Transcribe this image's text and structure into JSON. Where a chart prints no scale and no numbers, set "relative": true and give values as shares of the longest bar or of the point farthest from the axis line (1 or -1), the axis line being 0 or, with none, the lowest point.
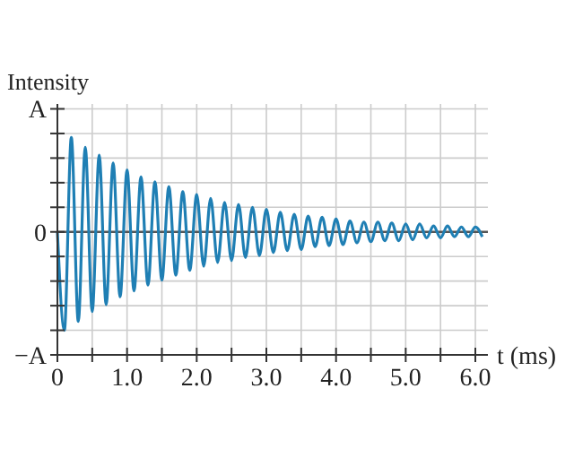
{
  "chart_data": {
    "type": "line",
    "ylabel": "Intensity",
    "xlabel": "t (ms)",
    "relative": true,
    "x": [
      0,
      0.1,
      0.2,
      0.3,
      0.4,
      0.5,
      0.6,
      0.7,
      0.8,
      0.9,
      1.0,
      1.1,
      1.2,
      1.3,
      1.4,
      1.5,
      1.6,
      1.7,
      1.8,
      1.9,
      2.0,
      2.1,
      2.2,
      2.3,
      2.4,
      2.5,
      2.6,
      2.7,
      2.8,
      2.9,
      3.0,
      3.1,
      3.2,
      3.3,
      3.4,
      3.5,
      3.6,
      3.7,
      3.8,
      3.9,
      4.0,
      4.1,
      4.2,
      4.3,
      4.4,
      4.5,
      4.6,
      4.7,
      4.8,
      4.9,
      5.0,
      5.1,
      5.2,
      5.3,
      5.4,
      5.5,
      5.6,
      5.7,
      5.8,
      5.9,
      6.0,
      6.1
    ],
    "series": [
      {
        "color": "#1f7fb4",
        "values": [
          0,
          -1,
          0.96,
          -0.91,
          0.86,
          -0.81,
          0.78,
          -0.74,
          0.7,
          -0.66,
          0.63,
          -0.6,
          0.56,
          -0.54,
          0.51,
          -0.49,
          0.46,
          -0.44,
          0.41,
          -0.39,
          0.38,
          -0.35,
          0.34,
          -0.31,
          0.3,
          -0.29,
          0.28,
          -0.26,
          0.25,
          -0.24,
          0.23,
          -0.21,
          0.2,
          -0.19,
          0.18,
          -0.18,
          0.16,
          -0.15,
          0.15,
          -0.14,
          0.13,
          -0.13,
          0.11,
          -0.11,
          0.1,
          -0.1,
          0.1,
          -0.09,
          0.09,
          -0.09,
          0.08,
          -0.08,
          0.08,
          -0.06,
          0.06,
          -0.06,
          0.06,
          -0.05,
          0.05,
          -0.05,
          0.05,
          -0.05
        ]
      }
    ],
    "annotations": [
      "A",
      "0",
      "−A"
    ],
    "xlim": [
      0,
      6.18
    ],
    "xticks": [
      {
        "value": 0,
        "label": "0"
      },
      {
        "value": 0.5,
        "label": null
      },
      {
        "value": 1,
        "label": "1.0"
      },
      {
        "value": 1.5,
        "label": null
      },
      {
        "value": 2,
        "label": "2.0"
      },
      {
        "value": 2.5,
        "label": null
      },
      {
        "value": 3,
        "label": "3.0"
      },
      {
        "value": 3.5,
        "label": null
      },
      {
        "value": 4,
        "label": "4.0"
      },
      {
        "value": 4.5,
        "label": null
      },
      {
        "value": 5,
        "label": "5.0"
      },
      {
        "value": 5.5,
        "label": null
      },
      {
        "value": 6,
        "label": "6.0"
      }
    ],
    "ref_lines": [
      {
        "axis": "y",
        "value": 0,
        "color": "#555555"
      }
    ],
    "grid": true,
    "marker": "none",
    "line_style": "solid"
  }
}
